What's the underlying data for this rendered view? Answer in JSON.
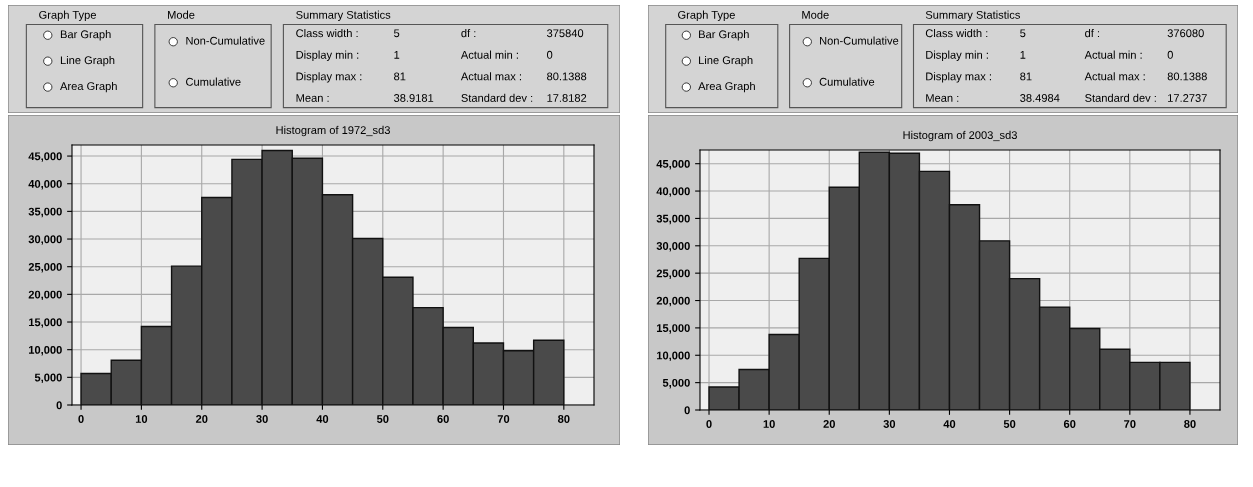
{
  "chart_data": [
    {
      "type": "other",
      "annotations": [
        "Graph Type",
        "Bar Graph",
        "Line Graph",
        "Area Graph",
        "Mode",
        "Non-Cumulative",
        "Cumulative",
        "Summary Statistics",
        "Class width :",
        "5",
        "df :",
        "375840",
        "Display min :",
        "1",
        "Actual min :",
        "0",
        "Display max :",
        "81",
        "Actual max :",
        "80.1388",
        "Mean :",
        "38.9181",
        "Standard dev :",
        "17.8182"
      ]
    },
    {
      "type": "histogram",
      "title": "Histogram of 1972_sd3",
      "color": "#4a4a4a",
      "bins": [
        0,
        5,
        10,
        15,
        20,
        25,
        30,
        35,
        40,
        45,
        50,
        55,
        60,
        65,
        70,
        75,
        80
      ],
      "values": [
        5700,
        8100,
        14200,
        25100,
        37500,
        44400,
        46000,
        44600,
        38000,
        30100,
        23100,
        17600,
        14000,
        11200,
        9800,
        11700
      ],
      "xlim": [
        -1.5,
        85
      ],
      "xticks": [
        0,
        10,
        20,
        30,
        40,
        50,
        60,
        70,
        80
      ],
      "ylim": [
        0,
        47000
      ],
      "yticks": [
        0,
        {
          "value": 5000,
          "label": "5,000"
        },
        {
          "value": 10000,
          "label": "10,000"
        },
        {
          "value": 15000,
          "label": "15,000"
        },
        {
          "value": 20000,
          "label": "20,000"
        },
        {
          "value": 25000,
          "label": "25,000"
        },
        {
          "value": 30000,
          "label": "30,000"
        },
        {
          "value": 35000,
          "label": "35,000"
        },
        {
          "value": 40000,
          "label": "40,000"
        },
        {
          "value": 45000,
          "label": "45,000"
        }
      ],
      "grid": true
    },
    {
      "type": "other",
      "annotations": [
        "Graph Type",
        "Bar Graph",
        "Line Graph",
        "Area Graph",
        "Mode",
        "Non-Cumulative",
        "Cumulative",
        "Summary Statistics",
        "Class width :",
        "5",
        "df :",
        "376080",
        "Display min :",
        "1",
        "Actual min :",
        "0",
        "Display max :",
        "81",
        "Actual max :",
        "80.1388",
        "Mean :",
        "38.4984",
        "Standard dev :",
        "17.2737"
      ]
    },
    {
      "type": "histogram",
      "title": "Histogram of 2003_sd3",
      "color": "#4a4a4a",
      "bins": [
        0,
        5,
        10,
        15,
        20,
        25,
        30,
        35,
        40,
        45,
        50,
        55,
        60,
        65,
        70,
        75,
        80
      ],
      "values": [
        4200,
        7400,
        13800,
        27700,
        40700,
        47100,
        46900,
        43600,
        37500,
        30900,
        24000,
        18800,
        14900,
        11100,
        8700,
        8700
      ],
      "xlim": [
        -1.5,
        85
      ],
      "xticks": [
        0,
        10,
        20,
        30,
        40,
        50,
        60,
        70,
        80
      ],
      "ylim": [
        0,
        47500
      ],
      "yticks": [
        0,
        {
          "value": 5000,
          "label": "5,000"
        },
        {
          "value": 10000,
          "label": "10,000"
        },
        {
          "value": 15000,
          "label": "15,000"
        },
        {
          "value": 20000,
          "label": "20,000"
        },
        {
          "value": 25000,
          "label": "25,000"
        },
        {
          "value": 30000,
          "label": "30,000"
        },
        {
          "value": 35000,
          "label": "35,000"
        },
        {
          "value": 40000,
          "label": "40,000"
        },
        {
          "value": 45000,
          "label": "45,000"
        }
      ],
      "grid": true
    }
  ]
}
